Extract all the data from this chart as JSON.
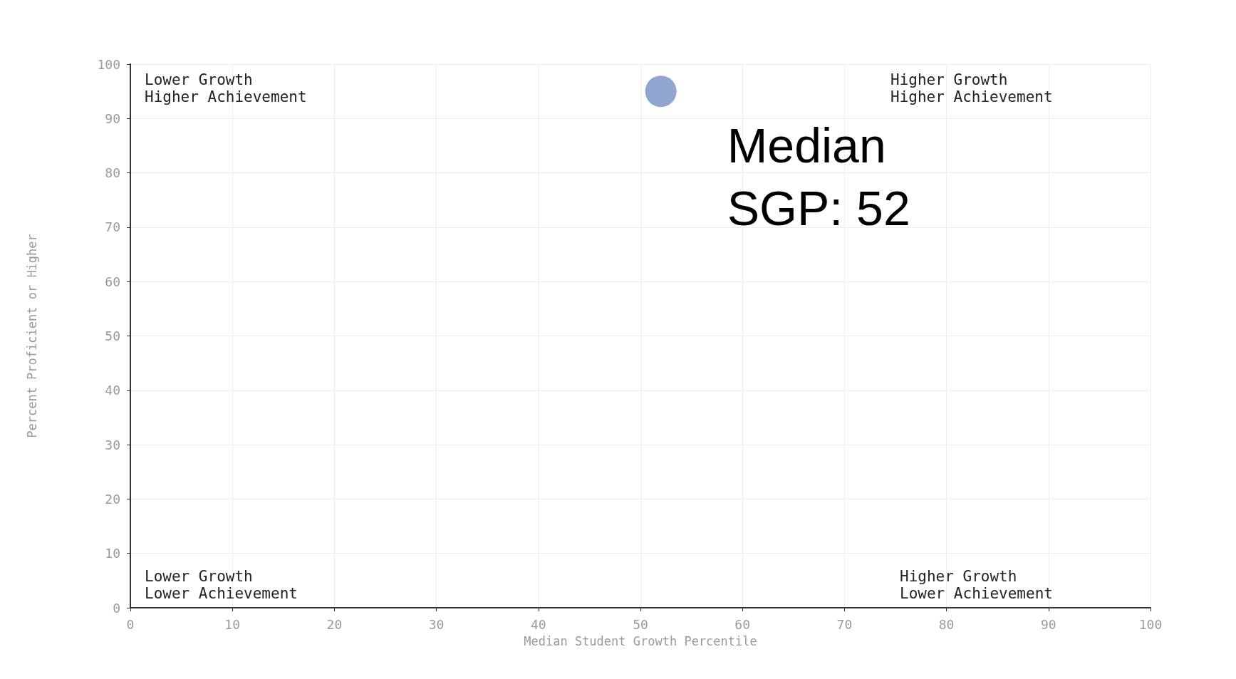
{
  "chart_data": {
    "type": "scatter",
    "xlabel": "Median Student Growth Percentile",
    "ylabel": "Percent Proficient or Higher",
    "x": [
      52
    ],
    "values": [
      95
    ],
    "color": "#7390c4",
    "marker": "circle",
    "xlim": [
      0,
      100
    ],
    "xticks": [
      0,
      10,
      20,
      30,
      40,
      50,
      60,
      70,
      80,
      90,
      100
    ],
    "ylim": [
      0,
      100
    ],
    "yticks": [
      0,
      10,
      20,
      30,
      40,
      50,
      60,
      70,
      80,
      90,
      100
    ],
    "grid": true,
    "annotations": [
      "Lower Growth\nHigher Achievement",
      "Higher Growth\nHigher Achievement",
      "Lower Growth\nLower Achievement",
      "Higher Growth\nLower Achievement",
      "Median SGP: 52"
    ]
  }
}
